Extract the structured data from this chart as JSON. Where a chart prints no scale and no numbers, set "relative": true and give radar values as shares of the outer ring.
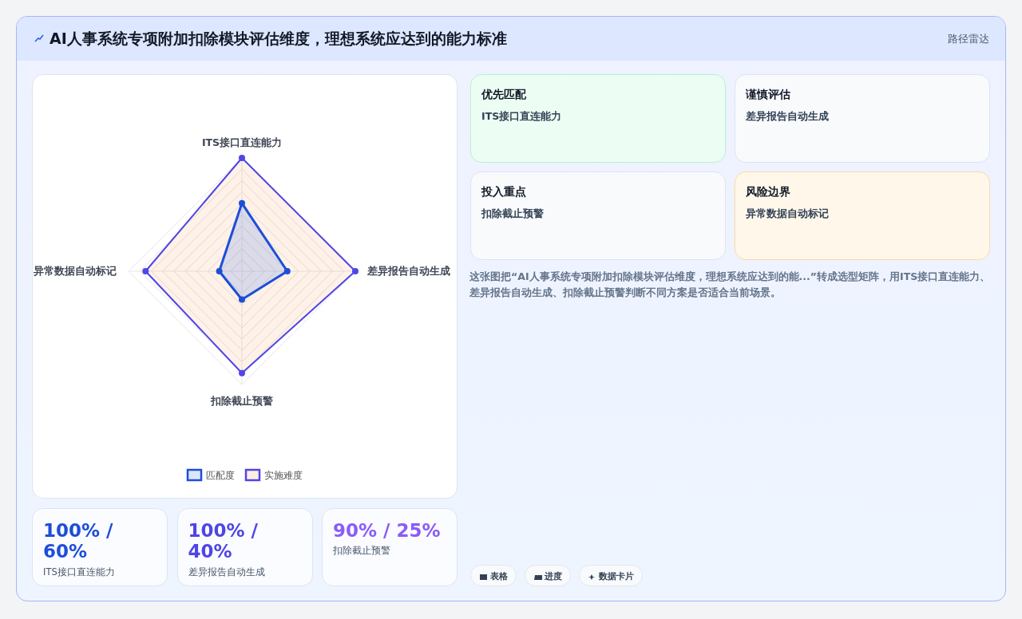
{
  "chart_data": [
    {
      "type": "radar",
      "title": "AI人事系统专项附加扣除模块评估维度，理想系统应达到的能力标准",
      "categories": [
        "ITS接口直连能力",
        "差异报告自动生成",
        "扣除截止预警",
        "异常数据自动标记"
      ],
      "relative": true,
      "grid": true,
      "legend": "bottom",
      "marker": "circle",
      "series": [
        {
          "name": "匹配度",
          "color": "#1d4ed8",
          "values": [
            0.6,
            0.4,
            0.25,
            0.2
          ]
        },
        {
          "name": "实施难度",
          "color": "#4f46e5",
          "values": [
            1,
            1,
            0.9,
            0.85
          ]
        }
      ]
    },
    {
      "type": "other",
      "annotations": [
        "100% / 60%",
        "ITS接口直连能力",
        "100% / 40%",
        "差异报告自动生成",
        "90% / 25%",
        "扣除截止预警"
      ]
    },
    {
      "type": "other",
      "annotations": [
        "优先匹配",
        "ITS接口直连能力",
        "谨慎评估",
        "差异报告自动生成",
        "投入重点",
        "扣除截止预警",
        "风险边界",
        "异常数据自动标记",
        "这张图把“AI人事系统专项附加扣除模块评估维度，理想系统应达到的能...”转成选型矩阵，用ITS接口直连能力、差异报告自动生成、扣除截止预警判断不同方案是否适合当前场景。",
        "表格",
        "进度",
        "数据卡片",
        "路径雷达"
      ]
    }
  ]
}
